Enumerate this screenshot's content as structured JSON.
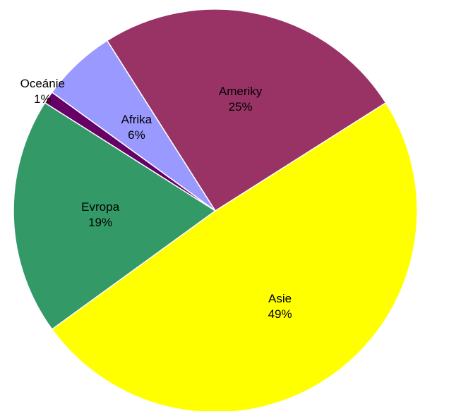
{
  "chart_data": {
    "type": "pie",
    "title": "",
    "slices": [
      {
        "name": "Asie",
        "value": 49,
        "label": "49%",
        "color": "#FFFF00"
      },
      {
        "name": "Evropa",
        "value": 19,
        "label": "19%",
        "color": "#339966"
      },
      {
        "name": "Oceánie",
        "value": 1,
        "label": "1%",
        "color": "#660066"
      },
      {
        "name": "Afrika",
        "value": 6,
        "label": "6%",
        "color": "#9999FF"
      },
      {
        "name": "Ameriky",
        "value": 25,
        "label": "25%",
        "color": "#993366"
      }
    ],
    "legend": "none",
    "labels": "on-slices"
  }
}
